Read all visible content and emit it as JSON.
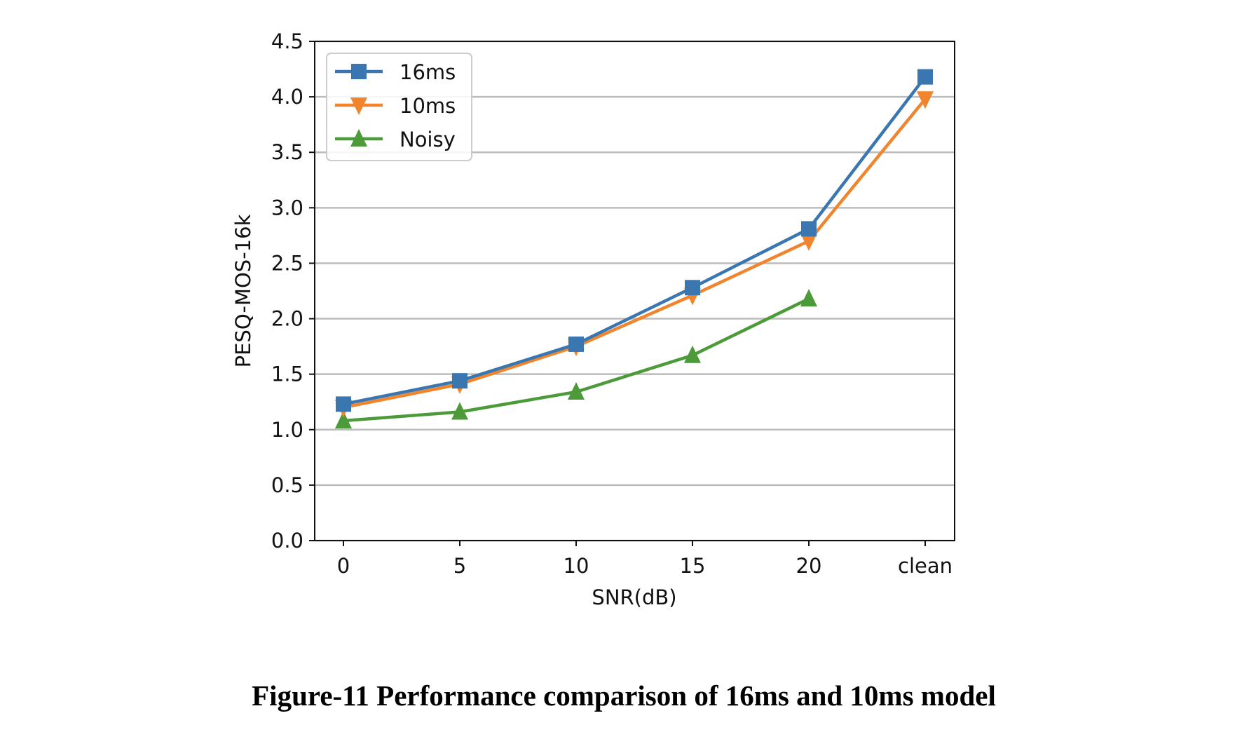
{
  "chart_data": {
    "type": "line",
    "title": "",
    "xlabel": "SNR(dB)",
    "ylabel": "PESQ-MOS-16k",
    "categories": [
      "0",
      "5",
      "10",
      "15",
      "20",
      "clean"
    ],
    "ylim": [
      0,
      4.5
    ],
    "yticks": [
      "0.0",
      "0.5",
      "1.0",
      "1.5",
      "2.0",
      "2.5",
      "3.0",
      "3.5",
      "4.0",
      "4.5"
    ],
    "grid": "horizontal",
    "legend_position": "top-left",
    "series": [
      {
        "name": "16ms",
        "color": "#3a76b0",
        "marker": "square",
        "values": [
          1.23,
          1.44,
          1.77,
          2.28,
          2.81,
          4.18
        ]
      },
      {
        "name": "10ms",
        "color": "#f0852d",
        "marker": "triangle-down",
        "values": [
          1.2,
          1.41,
          1.75,
          2.21,
          2.7,
          3.98
        ]
      },
      {
        "name": "Noisy",
        "color": "#4c9a3a",
        "marker": "triangle-up",
        "values": [
          1.08,
          1.16,
          1.34,
          1.67,
          2.18,
          null
        ]
      }
    ]
  },
  "caption": "Figure-11 Performance comparison of 16ms and 10ms model"
}
